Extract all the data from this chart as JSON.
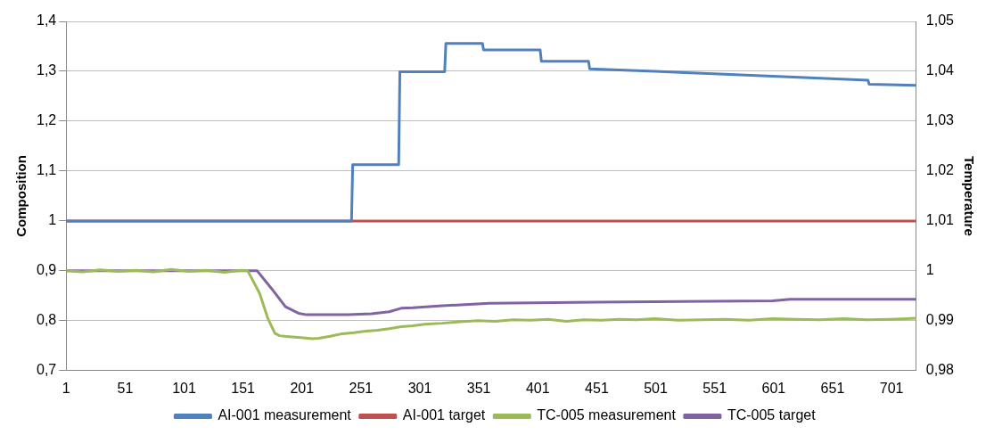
{
  "chart_data": {
    "type": "line",
    "ylabel": "Composition",
    "y2label": "Temperature",
    "xlim": [
      1,
      722
    ],
    "xticks": [
      1,
      51,
      101,
      151,
      201,
      251,
      301,
      351,
      401,
      451,
      501,
      551,
      601,
      651,
      701
    ],
    "ylim": [
      0.7,
      1.4
    ],
    "yticks": [
      {
        "value": 0.7,
        "label": "0,7"
      },
      {
        "value": 0.8,
        "label": "0,8"
      },
      {
        "value": 0.9,
        "label": "0,9"
      },
      1,
      {
        "value": 1.1,
        "label": "1,1"
      },
      {
        "value": 1.2,
        "label": "1,2"
      },
      {
        "value": 1.3,
        "label": "1,3"
      },
      {
        "value": 1.4,
        "label": "1,4"
      }
    ],
    "y2lim": [
      0.98,
      1.05
    ],
    "y2ticks": [
      {
        "value": 0.98,
        "label": "0,98"
      },
      {
        "value": 0.99,
        "label": "0,99"
      },
      1,
      {
        "value": 1.01,
        "label": "1,01"
      },
      {
        "value": 1.02,
        "label": "1,02"
      },
      {
        "value": 1.03,
        "label": "1,03"
      },
      {
        "value": 1.04,
        "label": "1,04"
      },
      {
        "value": 1.05,
        "label": "1,05"
      }
    ],
    "grid": "y",
    "legend": "bottom",
    "marker": "none",
    "line_style": "solid",
    "series": [
      {
        "name": "AI-001 measurement",
        "color": "#4f81bd",
        "x": [
          1,
          243,
          244,
          283,
          284,
          322,
          323,
          354,
          355,
          403,
          404,
          444,
          445,
          500,
          550,
          600,
          681,
          682,
          722
        ],
        "values": [
          1,
          1,
          1.113,
          1.113,
          1.299,
          1.299,
          1.356,
          1.356,
          1.343,
          1.343,
          1.32,
          1.32,
          1.305,
          1.3,
          1.295,
          1.29,
          1.282,
          1.274,
          1.272
        ]
      },
      {
        "name": "AI-001 target",
        "color": "#c0504d",
        "x": [
          1,
          722
        ],
        "values": [
          1,
          1
        ]
      },
      {
        "name": "TC-005 measurement",
        "color": "#9bbb59",
        "axis": "y2",
        "x": [
          1,
          15,
          30,
          45,
          60,
          75,
          90,
          105,
          120,
          135,
          150,
          155,
          165,
          172,
          178,
          182,
          190,
          200,
          210,
          215,
          225,
          235,
          245,
          255,
          265,
          275,
          285,
          295,
          305,
          320,
          335,
          350,
          365,
          380,
          395,
          410,
          425,
          440,
          455,
          470,
          485,
          500,
          520,
          540,
          560,
          580,
          600,
          620,
          640,
          660,
          680,
          700,
          722
        ],
        "values": [
          1,
          0.9998,
          1.0002,
          0.9999,
          1.0001,
          0.9998,
          1.0003,
          0.9999,
          1.0001,
          0.9997,
          1.0001,
          1,
          0.9955,
          0.9905,
          0.9875,
          0.987,
          0.9868,
          0.9866,
          0.9864,
          0.9865,
          0.9869,
          0.9874,
          0.9876,
          0.9879,
          0.9881,
          0.9884,
          0.9888,
          0.989,
          0.9893,
          0.9895,
          0.9898,
          0.99,
          0.9899,
          0.9902,
          0.9901,
          0.9903,
          0.9899,
          0.9902,
          0.9901,
          0.9903,
          0.9902,
          0.9904,
          0.9901,
          0.9902,
          0.9903,
          0.9901,
          0.9904,
          0.9903,
          0.9902,
          0.9904,
          0.9902,
          0.9903,
          0.9905
        ]
      },
      {
        "name": "TC-005 target",
        "color": "#8064a2",
        "axis": "y2",
        "x": [
          1,
          163,
          175,
          187,
          198,
          205,
          240,
          260,
          275,
          285,
          295,
          320,
          360,
          450,
          600,
          615,
          722
        ],
        "values": [
          1,
          1,
          0.9965,
          0.9928,
          0.9915,
          0.9912,
          0.9912,
          0.9914,
          0.9918,
          0.9925,
          0.9926,
          0.993,
          0.9935,
          0.9937,
          0.994,
          0.9943,
          0.9943
        ]
      }
    ]
  }
}
